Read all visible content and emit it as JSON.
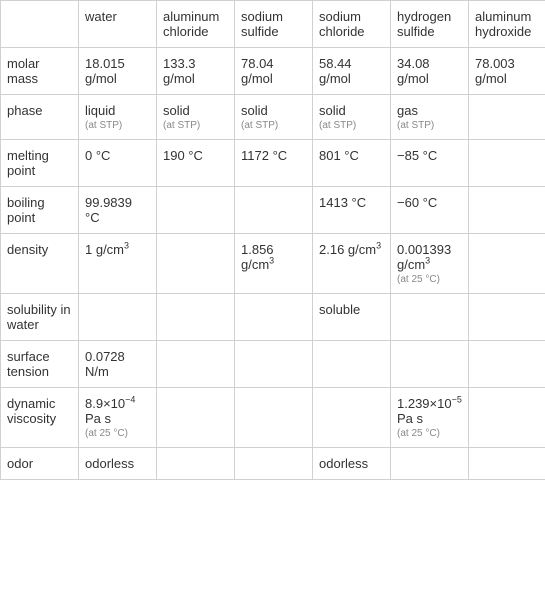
{
  "table": {
    "columns": [
      "",
      "water",
      "aluminum chloride",
      "sodium sulfide",
      "sodium chloride",
      "hydrogen sulfide",
      "aluminum hydroxide"
    ],
    "rows": [
      {
        "label": "molar mass",
        "cells": [
          {
            "main": "18.015 g/mol"
          },
          {
            "main": "133.3 g/mol"
          },
          {
            "main": "78.04 g/mol"
          },
          {
            "main": "58.44 g/mol"
          },
          {
            "main": "34.08 g/mol"
          },
          {
            "main": "78.003 g/mol"
          }
        ]
      },
      {
        "label": "phase",
        "cells": [
          {
            "main": "liquid",
            "note": "(at STP)"
          },
          {
            "main": "solid",
            "note": "(at STP)"
          },
          {
            "main": "solid",
            "note": "(at STP)"
          },
          {
            "main": "solid",
            "note": "(at STP)"
          },
          {
            "main": "gas",
            "note": "(at STP)"
          },
          {
            "main": ""
          }
        ]
      },
      {
        "label": "melting point",
        "cells": [
          {
            "main": "0 °C"
          },
          {
            "main": "190 °C"
          },
          {
            "main": "1172 °C"
          },
          {
            "main": "801 °C"
          },
          {
            "main": "−85 °C"
          },
          {
            "main": ""
          }
        ]
      },
      {
        "label": "boiling point",
        "cells": [
          {
            "main": "99.9839 °C"
          },
          {
            "main": ""
          },
          {
            "main": ""
          },
          {
            "main": "1413 °C"
          },
          {
            "main": "−60 °C"
          },
          {
            "main": ""
          }
        ]
      },
      {
        "label": "density",
        "cells": [
          {
            "main_html": "1 g/cm<sup>3</sup>"
          },
          {
            "main": ""
          },
          {
            "main_html": "1.856 g/cm<sup>3</sup>"
          },
          {
            "main_html": "2.16 g/cm<sup>3</sup>"
          },
          {
            "main_html": "0.001393 g/cm<sup>3</sup>",
            "note": "(at 25 °C)"
          },
          {
            "main": ""
          }
        ]
      },
      {
        "label": "solubility in water",
        "cells": [
          {
            "main": ""
          },
          {
            "main": ""
          },
          {
            "main": ""
          },
          {
            "main": "soluble"
          },
          {
            "main": ""
          },
          {
            "main": ""
          }
        ]
      },
      {
        "label": "surface tension",
        "cells": [
          {
            "main": "0.0728 N/m"
          },
          {
            "main": ""
          },
          {
            "main": ""
          },
          {
            "main": ""
          },
          {
            "main": ""
          },
          {
            "main": ""
          }
        ]
      },
      {
        "label": "dynamic viscosity",
        "cells": [
          {
            "main_html": "8.9×10<sup>−4</sup> Pa s",
            "note": "(at 25 °C)"
          },
          {
            "main": ""
          },
          {
            "main": ""
          },
          {
            "main": ""
          },
          {
            "main_html": "1.239×10<sup>−5</sup> Pa s",
            "note": "(at 25 °C)"
          },
          {
            "main": ""
          }
        ]
      },
      {
        "label": "odor",
        "cells": [
          {
            "main": "odorless"
          },
          {
            "main": ""
          },
          {
            "main": ""
          },
          {
            "main": "odorless"
          },
          {
            "main": ""
          },
          {
            "main": ""
          }
        ]
      }
    ],
    "colors": {
      "border": "#d0d0d0",
      "text": "#333333",
      "note": "#888888",
      "background": "#ffffff"
    },
    "font_size_main": 13,
    "font_size_note": 10
  }
}
